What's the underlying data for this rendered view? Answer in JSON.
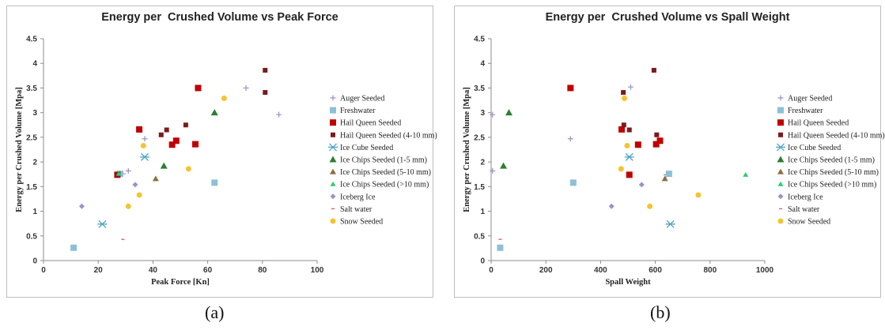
{
  "legend_entries": [
    {
      "label": "Auger Seeded",
      "marker": "plus",
      "color": "#9c8fc2"
    },
    {
      "label": "Freshwater",
      "marker": "square",
      "color": "#8dc0d6"
    },
    {
      "label": "Hail Queen Seeded",
      "marker": "square",
      "color": "#c00000"
    },
    {
      "label": "Hail Queen Seeded (4-10 mm)",
      "marker": "square-small",
      "color": "#7b1b1b"
    },
    {
      "label": "Ice Cube Seeded",
      "marker": "star",
      "color": "#4ba3c7"
    },
    {
      "label": "Ice Chips Seeded (1-5 mm)",
      "marker": "triangle",
      "color": "#2e7d32"
    },
    {
      "label": "Ice Chips Seeded (5-10 mm)",
      "marker": "triangle-small",
      "color": "#8d6e3f"
    },
    {
      "label": "Ice Chips Seeded (>10 mm)",
      "marker": "triangle-tiny",
      "color": "#2ecc71"
    },
    {
      "label": "Iceberg Ice",
      "marker": "diamond",
      "color": "#a28fc8"
    },
    {
      "label": "Salt water",
      "marker": "dash",
      "color": "#e06060"
    },
    {
      "label": "Snow Seeded",
      "marker": "circle",
      "color": "#f4c430"
    }
  ],
  "chart_data": [
    {
      "type": "scatter",
      "caption": "(a)",
      "title": "Energy per  Crushed Volume vs Peak Force",
      "xlabel": "Peak Force [Kn]",
      "ylabel": "Energy per Crushed Volume [Mpa]",
      "xlim": [
        0,
        100
      ],
      "ylim": [
        0,
        4.5
      ],
      "xticks": [
        0,
        20,
        40,
        60,
        80,
        100
      ],
      "yticks": [
        0,
        0.5,
        1,
        1.5,
        2,
        2.5,
        3,
        3.5,
        4,
        4.5
      ],
      "grid": false,
      "legend": "right",
      "series": [
        {
          "name": "Auger Seeded",
          "points": [
            [
              31,
              1.82
            ],
            [
              37,
              2.47
            ],
            [
              74,
              3.5
            ],
            [
              86,
              2.96
            ],
            [
              29,
              1.76
            ]
          ]
        },
        {
          "name": "Freshwater",
          "points": [
            [
              11,
              0.26
            ],
            [
              62.5,
              1.58
            ],
            [
              28,
              1.76
            ]
          ]
        },
        {
          "name": "Hail Queen Seeded",
          "points": [
            [
              56.5,
              3.5
            ],
            [
              35,
              2.66
            ],
            [
              47,
              2.35
            ],
            [
              48.5,
              2.43
            ],
            [
              55.5,
              2.36
            ],
            [
              27,
              1.74
            ]
          ]
        },
        {
          "name": "Hail Queen Seeded (4-10 mm)",
          "points": [
            [
              81,
              3.86
            ],
            [
              81,
              3.41
            ],
            [
              52,
              2.75
            ],
            [
              45,
              2.65
            ],
            [
              43,
              2.55
            ],
            [
              27,
              1.74
            ]
          ]
        },
        {
          "name": "Ice Cube Seeded",
          "points": [
            [
              37,
              2.1
            ],
            [
              21.5,
              0.74
            ]
          ]
        },
        {
          "name": "Ice Chips Seeded (1-5 mm)",
          "points": [
            [
              62.5,
              3.0
            ],
            [
              44,
              1.92
            ]
          ]
        },
        {
          "name": "Ice Chips Seeded (5-10 mm)",
          "points": [
            [
              41,
              1.66
            ]
          ]
        },
        {
          "name": "Ice Chips Seeded (>10 mm)",
          "points": [
            [
              27.5,
              1.76
            ]
          ]
        },
        {
          "name": "Iceberg Ice",
          "points": [
            [
              14,
              1.1
            ],
            [
              33.5,
              1.54
            ]
          ]
        },
        {
          "name": "Salt water",
          "points": [
            [
              29,
              0.43
            ]
          ]
        },
        {
          "name": "Snow Seeded",
          "points": [
            [
              66,
              3.29
            ],
            [
              36.5,
              2.33
            ],
            [
              53,
              1.86
            ],
            [
              35,
              1.33
            ],
            [
              31,
              1.1
            ]
          ]
        }
      ]
    },
    {
      "type": "scatter",
      "caption": "(b)",
      "title": "Energy per  Crushed Volume vs Spall Weight",
      "xlabel": "Spall Weight",
      "ylabel": "Energy per Crushed Volume [Mpa]",
      "xlim": [
        0,
        1000
      ],
      "ylim": [
        0,
        4.5
      ],
      "xticks": [
        0,
        200,
        400,
        600,
        800,
        1000
      ],
      "yticks": [
        0,
        0.5,
        1,
        1.5,
        2,
        2.5,
        3,
        3.5,
        4,
        4.5
      ],
      "grid": false,
      "legend": "right",
      "series": [
        {
          "name": "Auger Seeded",
          "points": [
            [
              5,
              2.96
            ],
            [
              290,
              2.47
            ],
            [
              510,
              3.52
            ],
            [
              640,
              1.74
            ],
            [
              5,
              1.82
            ]
          ]
        },
        {
          "name": "Freshwater",
          "points": [
            [
              33,
              0.26
            ],
            [
              300,
              1.58
            ],
            [
              650,
              1.76
            ]
          ]
        },
        {
          "name": "Hail Queen Seeded",
          "points": [
            [
              290,
              3.5
            ],
            [
              477,
              2.66
            ],
            [
              505,
              1.74
            ],
            [
              537,
              2.35
            ],
            [
              603,
              2.36
            ],
            [
              617,
              2.43
            ]
          ]
        },
        {
          "name": "Hail Queen Seeded (4-10 mm)",
          "points": [
            [
              595,
              3.86
            ],
            [
              483,
              3.41
            ],
            [
              485,
              2.75
            ],
            [
              505,
              2.65
            ],
            [
              605,
              2.55
            ]
          ]
        },
        {
          "name": "Ice Cube Seeded",
          "points": [
            [
              505,
              2.1
            ],
            [
              655,
              0.74
            ]
          ]
        },
        {
          "name": "Ice Chips Seeded (1-5 mm)",
          "points": [
            [
              65,
              3.0
            ],
            [
              45,
              1.92
            ]
          ]
        },
        {
          "name": "Ice Chips Seeded (5-10 mm)",
          "points": [
            [
              635,
              1.66
            ]
          ]
        },
        {
          "name": "Ice Chips Seeded (>10 mm)",
          "points": [
            [
              930,
              1.74
            ]
          ]
        },
        {
          "name": "Iceberg Ice",
          "points": [
            [
              440,
              1.1
            ],
            [
              550,
              1.54
            ]
          ]
        },
        {
          "name": "Salt water",
          "points": [
            [
              33,
              0.43
            ]
          ]
        },
        {
          "name": "Snow Seeded",
          "points": [
            [
              487,
              3.29
            ],
            [
              497,
              2.33
            ],
            [
              475,
              1.86
            ],
            [
              580,
              1.1
            ],
            [
              757,
              1.33
            ]
          ]
        }
      ]
    }
  ]
}
